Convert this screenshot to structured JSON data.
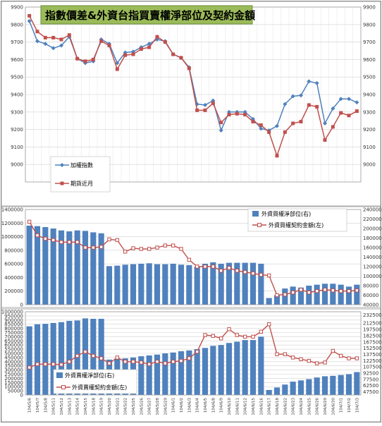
{
  "title": "指數價差&外資台指買賣權淨部位及契約金額",
  "dates": [
    "104/5/6",
    "104/5/7",
    "104/5/8",
    "104/5/11",
    "104/5/12",
    "104/5/13",
    "104/5/14",
    "104/5/15",
    "104/5/18",
    "104/5/19",
    "104/5/20",
    "104/5/21",
    "104/5/22",
    "104/5/25",
    "104/5/26",
    "104/5/27",
    "104/5/28",
    "104/5/29",
    "104/6/1",
    "104/6/2",
    "104/6/3",
    "104/6/4",
    "104/6/5",
    "104/6/8",
    "104/6/9",
    "104/6/10",
    "104/6/11",
    "104/6/12",
    "104/6/15",
    "104/6/16",
    "104/6/17",
    "104/6/18",
    "104/6/22",
    "104/6/23",
    "104/6/24",
    "104/6/25",
    "104/6/26",
    "104/6/29",
    "104/6/30",
    "104/7/1",
    "104/7/2",
    "104/7/3"
  ],
  "chart_data": [
    {
      "type": "line",
      "title": "指數價差&外資台指買賣權淨部位及契約金額",
      "y_ticks": [
        "9000",
        "9100",
        "9200",
        "9300",
        "9400",
        "9500",
        "9600",
        "9700",
        "9800",
        "9900"
      ],
      "ylim": [
        8900,
        9900
      ],
      "legend_position": "bottom-left",
      "series": [
        {
          "name": "加權指數",
          "color": "#4f81bd",
          "marker": "diamond",
          "values": [
            9820,
            9705,
            9690,
            9665,
            9680,
            9730,
            9605,
            9580,
            9590,
            9715,
            9690,
            9580,
            9640,
            9645,
            9670,
            9690,
            9715,
            9705,
            9630,
            9610,
            9555,
            9345,
            9340,
            9365,
            9195,
            9300,
            9300,
            9300,
            9260,
            9205,
            9195,
            9220,
            9345,
            9390,
            9395,
            9475,
            9465,
            9235,
            9320,
            9375,
            9375,
            9355
          ]
        },
        {
          "name": "期貨近月",
          "color": "#c0504d",
          "marker": "square",
          "values": [
            9850,
            9760,
            9725,
            9725,
            9715,
            9740,
            9605,
            9590,
            9600,
            9705,
            9680,
            9545,
            9625,
            9630,
            9660,
            9670,
            9730,
            9700,
            9630,
            9610,
            9550,
            9310,
            9310,
            9350,
            9240,
            9285,
            9290,
            9285,
            9245,
            9225,
            9185,
            9050,
            9185,
            9235,
            9245,
            9340,
            9330,
            9140,
            9215,
            9295,
            9280,
            9305
          ]
        }
      ]
    },
    {
      "type": "bar+line",
      "y_left_ticks": [
        "0",
        "200000",
        "400000",
        "600000",
        "800000",
        "1000000",
        "1200000",
        "1400000"
      ],
      "y_left_lim": [
        0,
        1400000
      ],
      "y_right_ticks": [
        "40000",
        "60000",
        "80000",
        "100000",
        "120000",
        "140000",
        "160000",
        "180000",
        "200000",
        "220000",
        "240000"
      ],
      "y_right_lim": [
        40000,
        240000
      ],
      "legend_position": "top-right",
      "series": [
        {
          "name": "外資買權淨部位(右)",
          "type": "bar",
          "axis": "right",
          "color": "#4f81bd",
          "values": [
            206000,
            205000,
            203000,
            200000,
            196000,
            194000,
            196000,
            195000,
            192000,
            190000,
            121000,
            122000,
            124000,
            125000,
            126000,
            127000,
            125000,
            125000,
            126000,
            124000,
            123000,
            120000,
            126000,
            129000,
            126000,
            128000,
            128000,
            128000,
            128000,
            126000,
            54000,
            60000,
            74000,
            78000,
            76000,
            80000,
            82000,
            84000,
            84000,
            82000,
            78000,
            82000
          ]
        },
        {
          "name": "外資買權契約金額(左)",
          "type": "line",
          "axis": "left",
          "color": "#c0504d",
          "values": [
            1220000,
            1020000,
            970000,
            950000,
            920000,
            920000,
            920000,
            840000,
            840000,
            850000,
            960000,
            950000,
            780000,
            830000,
            820000,
            820000,
            840000,
            870000,
            870000,
            820000,
            660000,
            560000,
            560000,
            560000,
            500000,
            540000,
            500000,
            480000,
            460000,
            440000,
            430000,
            140000,
            150000,
            180000,
            220000,
            180000,
            200000,
            220000,
            210000,
            200000,
            200000,
            210000
          ]
        }
      ]
    },
    {
      "type": "bar+line",
      "y_left_ticks": [
        "0",
        "50000",
        "100000",
        "150000",
        "200000",
        "250000",
        "300000",
        "350000",
        "400000",
        "450000",
        "500000",
        "550000",
        "600000",
        "650000",
        "700000",
        "750000",
        "800000",
        "850000",
        "900000",
        "950000",
        "1000000"
      ],
      "y_left_lim": [
        0,
        1000000
      ],
      "y_right_ticks": [
        "47500",
        "62500",
        "77500",
        "92500",
        "107500",
        "122500",
        "137500",
        "152500",
        "167500",
        "182500",
        "197500",
        "212500",
        "232500"
      ],
      "y_right_lim": [
        40000,
        240000
      ],
      "legend_position": "bottom-left",
      "series": [
        {
          "name": "外資賣權淨部位(右)",
          "type": "bar",
          "axis": "right",
          "color": "#4f81bd",
          "values": [
            205000,
            210000,
            211000,
            213000,
            215000,
            218000,
            219000,
            224000,
            223000,
            223000,
            125000,
            126000,
            128000,
            130000,
            133000,
            135000,
            137000,
            140000,
            142000,
            145000,
            147000,
            150000,
            153000,
            158000,
            160000,
            165000,
            168000,
            172000,
            172000,
            180000,
            52000,
            58000,
            65000,
            72000,
            75000,
            78000,
            82000,
            85000,
            86000,
            88000,
            90000,
            95000
          ]
        },
        {
          "name": "外資賣權契約金額(左)",
          "type": "line",
          "axis": "left",
          "color": "#c0504d",
          "values": [
            330000,
            370000,
            370000,
            370000,
            365000,
            400000,
            470000,
            520000,
            470000,
            440000,
            380000,
            450000,
            400000,
            400000,
            390000,
            370000,
            400000,
            380000,
            400000,
            410000,
            440000,
            520000,
            720000,
            710000,
            680000,
            790000,
            720000,
            700000,
            700000,
            760000,
            850000,
            490000,
            490000,
            450000,
            430000,
            410000,
            380000,
            390000,
            530000,
            470000,
            440000,
            440000
          ]
        }
      ]
    }
  ]
}
